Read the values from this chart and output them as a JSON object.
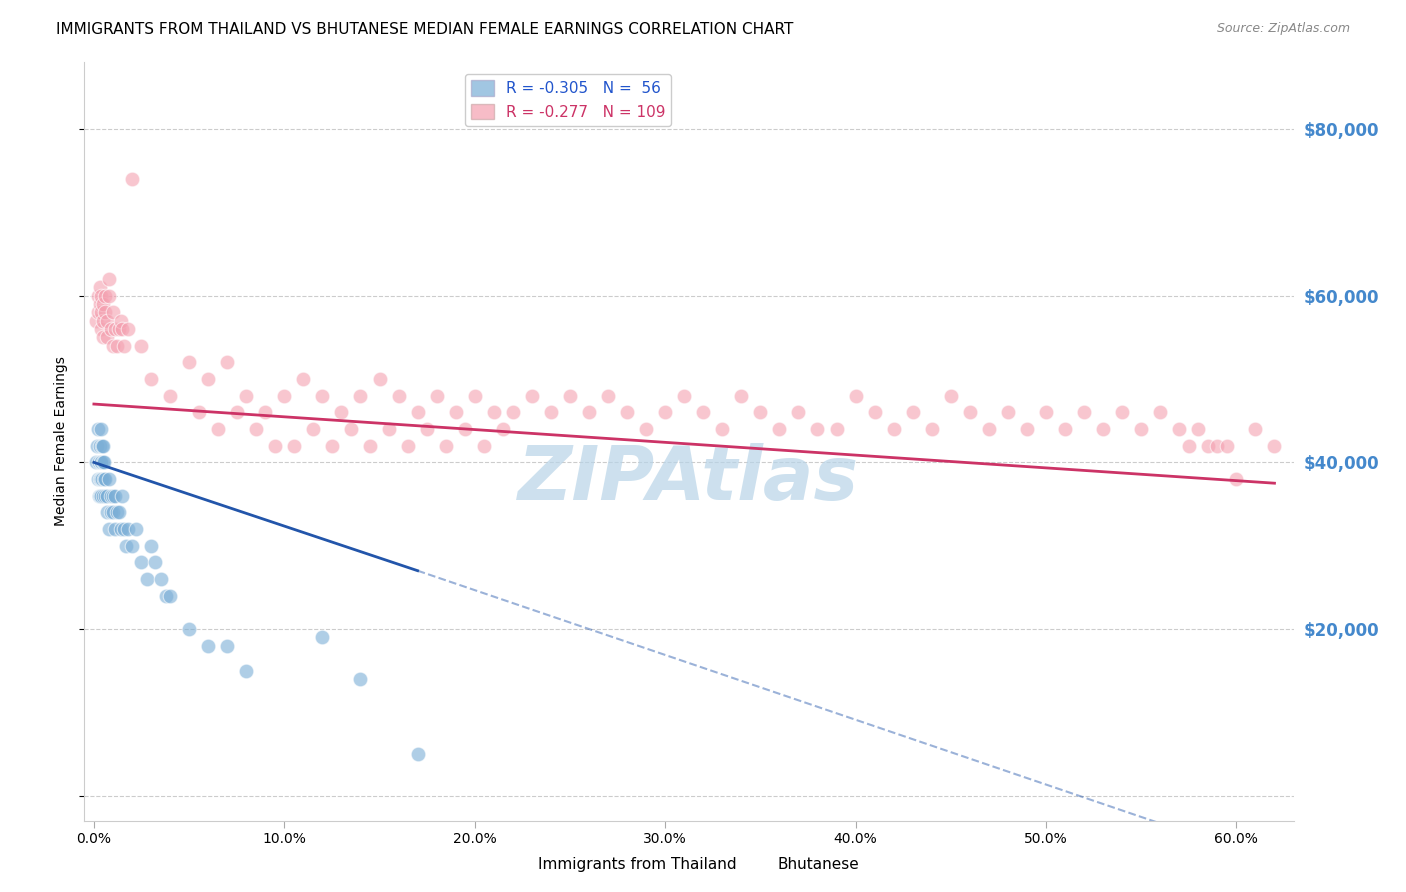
{
  "title": "IMMIGRANTS FROM THAILAND VS BHUTANESE MEDIAN FEMALE EARNINGS CORRELATION CHART",
  "source": "Source: ZipAtlas.com",
  "xlabel_ticks": [
    "0.0%",
    "10.0%",
    "20.0%",
    "30.0%",
    "40.0%",
    "50.0%",
    "60.0%"
  ],
  "xlabel_vals": [
    0,
    10,
    20,
    30,
    40,
    50,
    60
  ],
  "ylabel": "Median Female Earnings",
  "ytick_vals": [
    0,
    20000,
    40000,
    60000,
    80000
  ],
  "ytick_labels": [
    "",
    "$20,000",
    "$40,000",
    "$60,000",
    "$80,000"
  ],
  "xlim": [
    -0.5,
    63
  ],
  "ylim": [
    -3000,
    88000
  ],
  "series1_name": "Immigrants from Thailand",
  "series1_color": "#7aaed6",
  "series1_R": -0.305,
  "series1_N": 56,
  "series2_name": "Bhutanese",
  "series2_color": "#f4a0b0",
  "series2_R": -0.277,
  "series2_N": 109,
  "watermark": "ZIPAtlas",
  "watermark_color": "#b8d4e8",
  "background_color": "#ffffff",
  "grid_color": "#cccccc",
  "title_fontsize": 11,
  "axis_label_fontsize": 10,
  "tick_fontsize": 10,
  "legend_fontsize": 11,
  "right_ytick_color": "#4488cc",
  "series1_line_color": "#2255aa",
  "series2_line_color": "#cc3366",
  "series1_x": [
    0.1,
    0.15,
    0.2,
    0.2,
    0.25,
    0.25,
    0.3,
    0.3,
    0.3,
    0.35,
    0.35,
    0.4,
    0.4,
    0.4,
    0.45,
    0.45,
    0.5,
    0.5,
    0.5,
    0.55,
    0.55,
    0.6,
    0.6,
    0.7,
    0.7,
    0.8,
    0.8,
    0.9,
    0.9,
    1.0,
    1.0,
    1.1,
    1.1,
    1.2,
    1.3,
    1.4,
    1.5,
    1.6,
    1.7,
    1.8,
    2.0,
    2.2,
    2.5,
    2.8,
    3.0,
    3.2,
    3.5,
    3.8,
    4.0,
    5.0,
    6.0,
    7.0,
    8.0,
    12.0,
    14.0,
    17.0
  ],
  "series1_y": [
    40000,
    42000,
    38000,
    44000,
    40000,
    36000,
    42000,
    38000,
    36000,
    40000,
    38000,
    44000,
    40000,
    36000,
    42000,
    38000,
    42000,
    40000,
    36000,
    40000,
    38000,
    38000,
    36000,
    36000,
    34000,
    38000,
    32000,
    36000,
    34000,
    36000,
    34000,
    36000,
    32000,
    34000,
    34000,
    32000,
    36000,
    32000,
    30000,
    32000,
    30000,
    32000,
    28000,
    26000,
    30000,
    28000,
    26000,
    24000,
    24000,
    20000,
    18000,
    18000,
    15000,
    19000,
    14000,
    5000
  ],
  "series2_x": [
    0.1,
    0.2,
    0.2,
    0.3,
    0.3,
    0.4,
    0.4,
    0.4,
    0.5,
    0.5,
    0.5,
    0.6,
    0.6,
    0.7,
    0.7,
    0.8,
    0.8,
    0.9,
    1.0,
    1.0,
    1.1,
    1.2,
    1.3,
    1.4,
    1.5,
    1.6,
    1.8,
    2.0,
    2.5,
    3.0,
    4.0,
    5.0,
    6.0,
    7.0,
    8.0,
    9.0,
    10.0,
    11.0,
    12.0,
    13.0,
    14.0,
    15.0,
    16.0,
    17.0,
    18.0,
    19.0,
    20.0,
    21.0,
    22.0,
    23.0,
    24.0,
    25.0,
    26.0,
    27.0,
    28.0,
    29.0,
    30.0,
    31.0,
    32.0,
    33.0,
    34.0,
    35.0,
    36.0,
    37.0,
    38.0,
    39.0,
    40.0,
    41.0,
    42.0,
    43.0,
    44.0,
    45.0,
    46.0,
    47.0,
    48.0,
    49.0,
    50.0,
    51.0,
    52.0,
    53.0,
    54.0,
    55.0,
    56.0,
    57.0,
    57.5,
    58.0,
    58.5,
    59.0,
    59.5,
    60.0,
    61.0,
    62.0,
    5.5,
    6.5,
    7.5,
    8.5,
    9.5,
    10.5,
    11.5,
    12.5,
    13.5,
    14.5,
    15.5,
    16.5,
    17.5,
    18.5,
    19.5,
    20.5,
    21.5
  ],
  "series2_y": [
    57000,
    60000,
    58000,
    61000,
    59000,
    60000,
    58000,
    56000,
    59000,
    57000,
    55000,
    60000,
    58000,
    57000,
    55000,
    62000,
    60000,
    56000,
    58000,
    54000,
    56000,
    54000,
    56000,
    57000,
    56000,
    54000,
    56000,
    74000,
    54000,
    50000,
    48000,
    52000,
    50000,
    52000,
    48000,
    46000,
    48000,
    50000,
    48000,
    46000,
    48000,
    50000,
    48000,
    46000,
    48000,
    46000,
    48000,
    46000,
    46000,
    48000,
    46000,
    48000,
    46000,
    48000,
    46000,
    44000,
    46000,
    48000,
    46000,
    44000,
    48000,
    46000,
    44000,
    46000,
    44000,
    44000,
    48000,
    46000,
    44000,
    46000,
    44000,
    48000,
    46000,
    44000,
    46000,
    44000,
    46000,
    44000,
    46000,
    44000,
    46000,
    44000,
    46000,
    44000,
    42000,
    44000,
    42000,
    42000,
    42000,
    38000,
    44000,
    42000,
    46000,
    44000,
    46000,
    44000,
    42000,
    42000,
    44000,
    42000,
    44000,
    42000,
    44000,
    42000,
    44000,
    42000,
    44000,
    42000,
    44000
  ]
}
